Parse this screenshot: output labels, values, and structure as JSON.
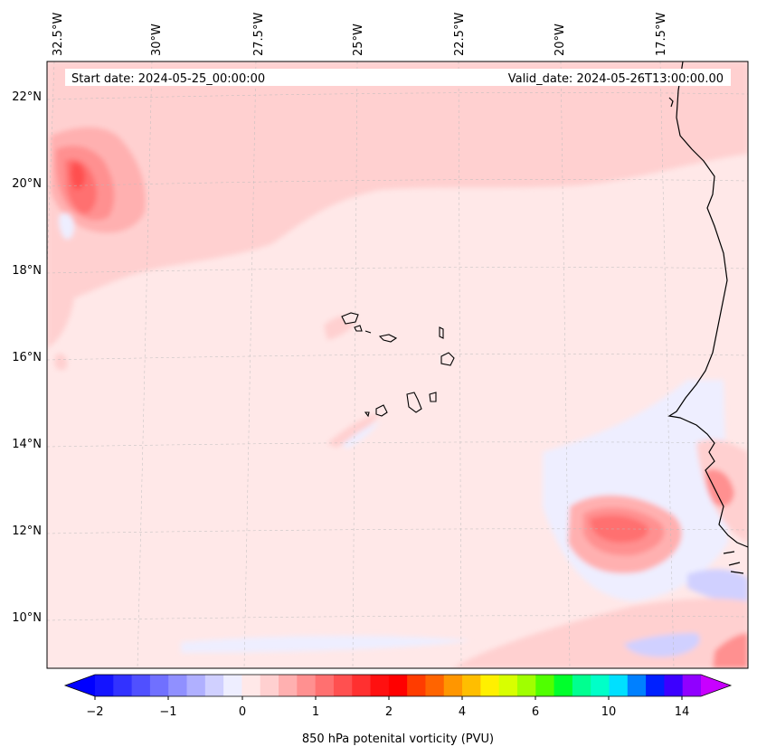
{
  "header": {
    "start_date": "Start date: 2024-05-25_00:00:00",
    "valid_date": "Valid_date: 2024-05-26T13:00:00.00"
  },
  "longitude_labels": [
    "32.5°W",
    "30°W",
    "27.5°W",
    "25°W",
    "22.5°W",
    "20°W",
    "17.5°W"
  ],
  "latitude_labels": [
    "22°N",
    "20°N",
    "18°N",
    "16°N",
    "14°N",
    "12°N",
    "10°N"
  ],
  "colorbar": {
    "tick_labels": [
      "−2",
      "−1",
      "0",
      "1",
      "2",
      "4",
      "6",
      "10",
      "14"
    ],
    "label": "850 hPa potenital vorticity (PVU)",
    "colors": [
      "#1414ff",
      "#3232ff",
      "#5050ff",
      "#7070ff",
      "#9090ff",
      "#b0b0ff",
      "#d0d0ff",
      "#eeeeff",
      "#ffe8e8",
      "#ffd0d0",
      "#ffb0b0",
      "#ff9090",
      "#ff7070",
      "#ff5050",
      "#ff3030",
      "#ff1010",
      "#ff0000",
      "#ff3c00",
      "#ff6400",
      "#ff9600",
      "#ffbe00",
      "#fff000",
      "#d8ff00",
      "#a0ff00",
      "#50ff00",
      "#00ff2c",
      "#00ff90",
      "#00ffc8",
      "#00e0ff",
      "#0080ff",
      "#0020ff",
      "#3c00ff",
      "#9000ff"
    ],
    "under_color": "#0000ff",
    "over_color": "#c800ff"
  },
  "colors": {
    "background": "#ffe8e8",
    "light_pink": "#ffd0d0",
    "pink": "#ffb0b0",
    "salmon": "#ff9090",
    "red": "#ff7070",
    "deep_red": "#ff5050",
    "pale_blue": "#eeeeff",
    "light_blue": "#d0d0ff",
    "blue": "#b0b0ff"
  }
}
